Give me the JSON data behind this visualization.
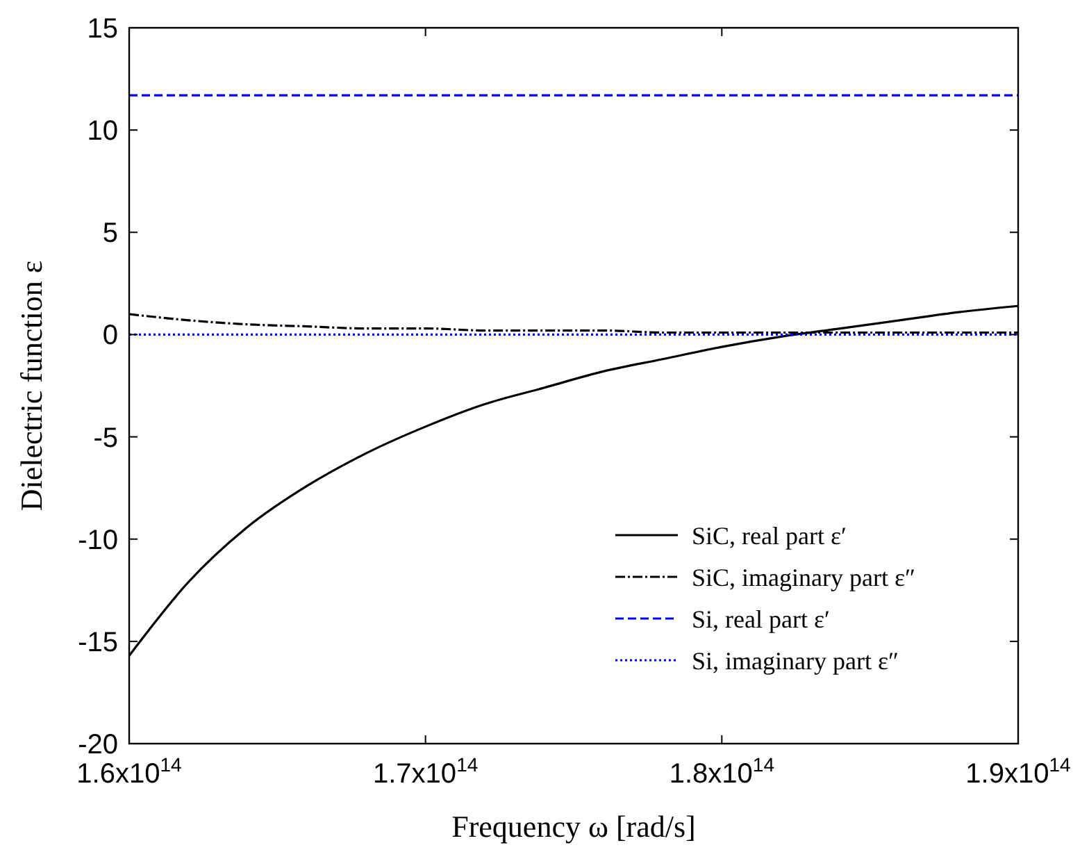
{
  "chart_data": {
    "type": "line",
    "xlabel": "Frequency ω [rad/s]",
    "ylabel": "Dielectric function ε",
    "xlim": [
      160000000000000.0,
      190000000000000.0
    ],
    "ylim": [
      -20,
      15
    ],
    "xticks": [
      {
        "value": 160000000000000.0,
        "label": "1.6x10$^{14}$"
      },
      {
        "value": 170000000000000.0,
        "label": "1.7x10$^{14}$"
      },
      {
        "value": 180000000000000.0,
        "label": "1.8x10$^{14}$"
      },
      {
        "value": 190000000000000.0,
        "label": "1.9x10$^{14}$"
      }
    ],
    "yticks": [
      -20,
      -15,
      -10,
      -5,
      0,
      5,
      10,
      15
    ],
    "x": [
      160000000000000.0,
      162000000000000.0,
      164000000000000.0,
      166000000000000.0,
      168000000000000.0,
      170000000000000.0,
      172000000000000.0,
      174000000000000.0,
      176000000000000.0,
      178000000000000.0,
      180000000000000.0,
      182000000000000.0,
      184000000000000.0,
      186000000000000.0,
      188000000000000.0,
      190000000000000.0
    ],
    "legend": "bottom right",
    "grid": false,
    "series": [
      {
        "name": "SiC, real part ε′",
        "color": "#000000",
        "line_style": "solid",
        "values": [
          -15.7,
          -12.1,
          -9.4,
          -7.4,
          -5.8,
          -4.5,
          -3.4,
          -2.6,
          -1.8,
          -1.2,
          -0.6,
          -0.1,
          0.3,
          0.7,
          1.1,
          1.4
        ]
      },
      {
        "name": "SiC, imaginary part ε″",
        "color": "#000000",
        "line_style": "dashdot",
        "values": [
          1.0,
          0.7,
          0.5,
          0.4,
          0.3,
          0.3,
          0.2,
          0.2,
          0.2,
          0.1,
          0.1,
          0.1,
          0.1,
          0.1,
          0.1,
          0.1
        ]
      },
      {
        "name": "Si, real part ε′",
        "color": "#0000ff",
        "line_style": "dashed",
        "values": [
          11.7,
          11.7,
          11.7,
          11.7,
          11.7,
          11.7,
          11.7,
          11.7,
          11.7,
          11.7,
          11.7,
          11.7,
          11.7,
          11.7,
          11.7,
          11.7
        ]
      },
      {
        "name": "Si, imaginary part ε″",
        "color": "#0000ff",
        "line_style": "dotted",
        "values": [
          0,
          0,
          0,
          0,
          0,
          0,
          0,
          0,
          0,
          0,
          0,
          0,
          0,
          0,
          0,
          0
        ]
      }
    ]
  }
}
